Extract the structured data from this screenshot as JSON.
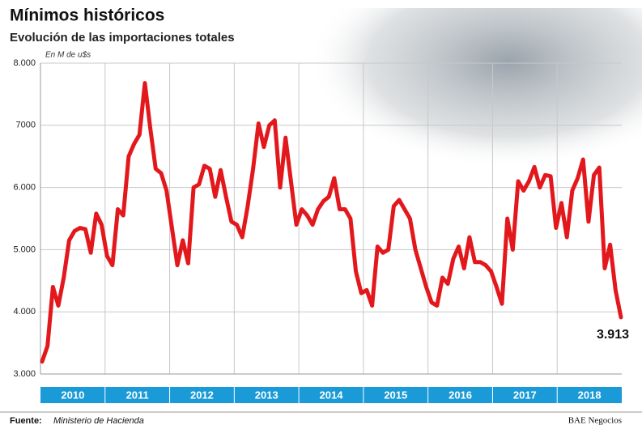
{
  "chart_data": {
    "type": "line",
    "title": "Mínimos históricos",
    "subtitle": "Evolución de las importaciones totales",
    "y_axis_label": "En M de u$s",
    "years": [
      "2010",
      "2011",
      "2012",
      "2013",
      "2014",
      "2015",
      "2016",
      "2017",
      "2018"
    ],
    "series": [
      {
        "name": "Importaciones totales",
        "color": "#e3181c",
        "values": [
          3200,
          3450,
          4400,
          4100,
          4550,
          5150,
          5300,
          5350,
          5330,
          4950,
          5580,
          5400,
          4900,
          4750,
          5650,
          5550,
          6500,
          6700,
          6850,
          7680,
          6950,
          6300,
          6230,
          5950,
          5350,
          4750,
          5150,
          4780,
          6000,
          6050,
          6350,
          6300,
          5850,
          6280,
          5850,
          5450,
          5400,
          5200,
          5700,
          6300,
          7030,
          6650,
          7000,
          7080,
          6000,
          6800,
          6100,
          5400,
          5650,
          5550,
          5400,
          5650,
          5780,
          5850,
          6150,
          5650,
          5650,
          5500,
          4650,
          4300,
          4350,
          4100,
          5050,
          4950,
          5000,
          5700,
          5800,
          5650,
          5500,
          5000,
          4700,
          4400,
          4150,
          4100,
          4550,
          4450,
          4850,
          5050,
          4700,
          5200,
          4800,
          4800,
          4750,
          4650,
          4400,
          4130,
          5500,
          5000,
          6100,
          5950,
          6100,
          6330,
          6000,
          6200,
          6180,
          5350,
          5750,
          5200,
          5950,
          6150,
          6450,
          5450,
          6200,
          6320,
          4700,
          5080,
          4350,
          3913
        ]
      }
    ],
    "annotations": [
      {
        "text": "3.913",
        "value": 3913
      }
    ],
    "ylim": [
      3000,
      8000
    ],
    "yticks": [
      {
        "value": 3000,
        "label": "3.000"
      },
      {
        "value": 4000,
        "label": "4.000"
      },
      {
        "value": 5000,
        "label": "5.000"
      },
      {
        "value": 6000,
        "label": "6.000"
      },
      7000,
      {
        "value": 8000,
        "label": "8.000"
      }
    ],
    "grid": true
  },
  "footer": {
    "source_label": "Fuente:",
    "source": "Ministerio de Hacienda",
    "brand": "BAE Negocios"
  }
}
